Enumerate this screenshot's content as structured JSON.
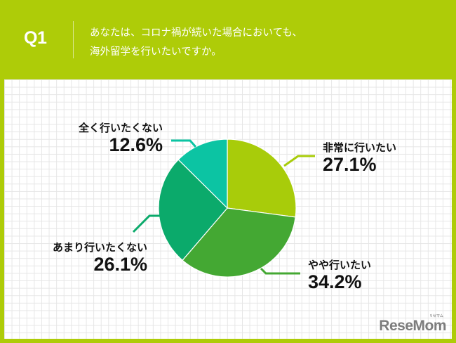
{
  "header": {
    "question_number": "Q1",
    "question_line1": "あなたは、コロナ禍が続いた場合においても、",
    "question_line2": "海外留学を行いたいですか。"
  },
  "colors": {
    "banner": "#AECC08",
    "very_much": "#A8CC0A",
    "somewhat": "#44A833",
    "not_much": "#0BAA6B",
    "not_at_all": "#0CC4A3"
  },
  "chart_data": {
    "type": "pie",
    "title": "あなたは、コロナ禍が続いた場合においても、海外留学を行いたいですか。",
    "categories": [
      "非常に行いたい",
      "やや行いたい",
      "あまり行いたくない",
      "全く行いたくない"
    ],
    "values": [
      27.1,
      34.2,
      26.1,
      12.6
    ],
    "unit": "%",
    "start_angle": "12 o'clock, clockwise",
    "legend": "direct labels with leader lines"
  },
  "labels": {
    "very_much": {
      "name": "非常に行いたい",
      "pct": "27.1%"
    },
    "somewhat": {
      "name": "やや行いたい",
      "pct": "34.2%"
    },
    "not_much": {
      "name": "あまり行いたくない",
      "pct": "26.1%"
    },
    "not_at_all": {
      "name": "全く行いたくない",
      "pct": "12.6%"
    }
  },
  "logo": {
    "text": "ReseMom",
    "sub": "リセマム"
  }
}
